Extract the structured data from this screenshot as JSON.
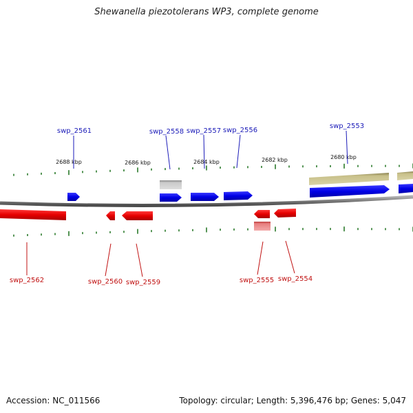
{
  "title": "Shewanella piezotolerans WP3, complete genome",
  "footer": {
    "accession": "Accession: NC_011566",
    "summary": "Topology: circular; Length: 5,396,476 bp; Genes: 5,047"
  },
  "colors": {
    "forward": "#0a0aee",
    "reverse": "#ee0a0a",
    "backbone": "#888888",
    "tick": "#2a7a2a",
    "olive": "#c8c08a",
    "gray_feature": "#bdbdbd",
    "pink_feature": "#e77a7a"
  },
  "scale_labels": [
    {
      "text": "2688 kbp",
      "kbp": 2688
    },
    {
      "text": "2686 kbp",
      "kbp": 2686
    },
    {
      "text": "2684 kbp",
      "kbp": 2684
    },
    {
      "text": "2682 kbp",
      "kbp": 2682
    },
    {
      "text": "2680 kbp",
      "kbp": 2680
    }
  ],
  "forward_genes": [
    {
      "name": "swp_2561"
    },
    {
      "name": "swp_2558"
    },
    {
      "name": "swp_2557"
    },
    {
      "name": "swp_2556"
    },
    {
      "name": "swp_2553"
    }
  ],
  "reverse_genes": [
    {
      "name": "swp_2562"
    },
    {
      "name": "swp_2560"
    },
    {
      "name": "swp_2559"
    },
    {
      "name": "swp_2555"
    },
    {
      "name": "swp_2554"
    }
  ]
}
